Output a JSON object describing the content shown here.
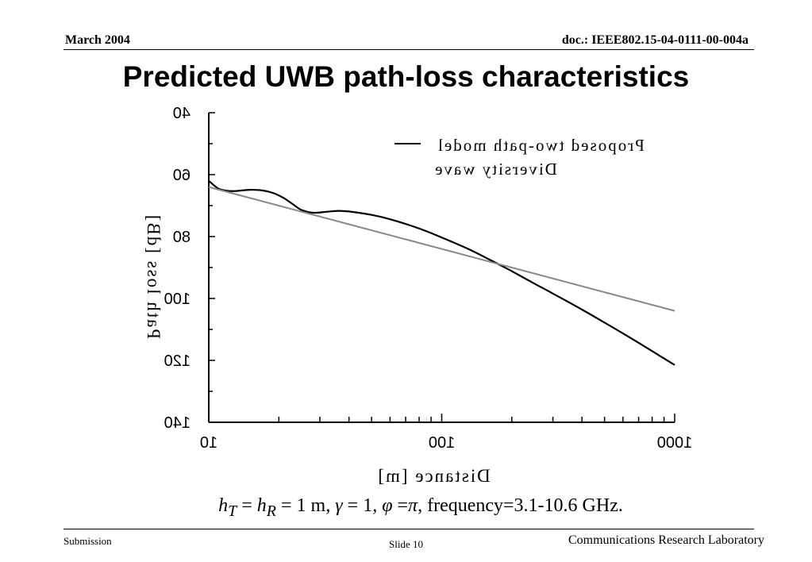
{
  "header": {
    "date": "March 2004",
    "doc": "doc.: IEEE802.15-04-0111-00-004a"
  },
  "slide_title": "Predicted UWB path-loss characteristics",
  "formula": {
    "text": "h_T = h_R = 1 m, γ = 1, φ = π, frequency=3.1-10.6 GHz."
  },
  "footer": {
    "left": "Submission",
    "center": "Slide 10",
    "right": "Communications Research Laboratory"
  },
  "colors": {
    "axis": "#000000",
    "proposed": "#000000",
    "two_ray": "#888888"
  },
  "chart_data": {
    "type": "line",
    "title": "",
    "xlabel": "Distance [m]",
    "ylabel": "Path loss [dB]",
    "x_scale": "log",
    "xlim": [
      10,
      1000
    ],
    "ylim": [
      40,
      140
    ],
    "y_inverted": true,
    "x_tick_labels": [
      "10",
      "100",
      "1000"
    ],
    "y_tick_labels": [
      "40",
      "60",
      "80",
      "100",
      "120",
      "140"
    ],
    "legend": {
      "placement": "top-right",
      "text_line1": "Proposed two-path model",
      "text_line2": "Diversity wave"
    },
    "series": [
      {
        "name": "Proposed two-path model",
        "x": [
          10,
          11,
          12,
          13,
          15,
          17,
          19,
          21,
          23,
          25,
          28,
          32,
          36,
          40,
          50,
          60,
          80,
          100,
          130,
          160,
          200,
          250,
          300,
          400,
          500,
          600,
          700,
          800,
          1000
        ],
        "y": [
          62,
          64.5,
          65.2,
          65.3,
          64.9,
          65.1,
          66,
          67.6,
          69.6,
          71.4,
          72.3,
          72,
          71.7,
          71.9,
          73,
          74.4,
          77.4,
          80.3,
          84,
          87.4,
          91.2,
          95.2,
          98.4,
          103.6,
          107.8,
          111.3,
          114.3,
          117,
          121.5
        ]
      },
      {
        "name": "",
        "x": [
          10,
          1000
        ],
        "y": [
          64,
          104
        ]
      }
    ]
  }
}
